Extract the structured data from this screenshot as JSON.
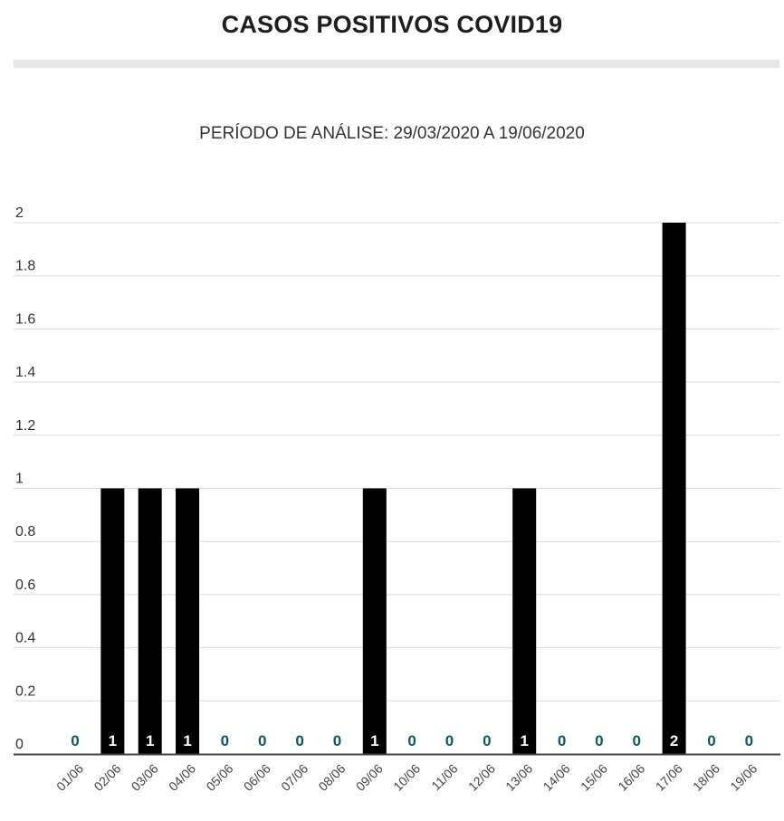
{
  "header": {
    "title": "CASOS POSITIVOS COVID19",
    "subtitle": "PERÍODO DE ANÁLISE: 29/03/2020 A 19/06/2020"
  },
  "colors": {
    "bar": "#000000",
    "grid": "#dcdcdc",
    "axis": "#444444",
    "zero_label": "#0a5c5c",
    "bar_label": "#ffffff"
  },
  "chart_data": {
    "type": "bar",
    "title": "CASOS POSITIVOS COVID19",
    "subtitle": "PERÍODO DE ANÁLISE: 29/03/2020 A 19/06/2020",
    "categories": [
      "01/06",
      "02/06",
      "03/06",
      "04/06",
      "05/06",
      "06/06",
      "07/06",
      "08/06",
      "09/06",
      "10/06",
      "11/06",
      "12/06",
      "13/06",
      "14/06",
      "15/06",
      "16/06",
      "17/06",
      "18/06",
      "19/06"
    ],
    "values": [
      0,
      1,
      1,
      1,
      0,
      0,
      0,
      0,
      1,
      0,
      0,
      0,
      1,
      0,
      0,
      0,
      2,
      0,
      0
    ],
    "data_labels": [
      "0",
      "1",
      "1",
      "1",
      "0",
      "0",
      "0",
      "0",
      "1",
      "0",
      "0",
      "0",
      "1",
      "0",
      "0",
      "0",
      "2",
      "0",
      "0"
    ],
    "yticks": [
      "0",
      "0.2",
      "0.4",
      "0.6",
      "0.8",
      "1",
      "1.2",
      "1.4",
      "1.6",
      "1.8",
      "2"
    ],
    "ylim": [
      0,
      2
    ],
    "grid": true,
    "legend": false
  }
}
